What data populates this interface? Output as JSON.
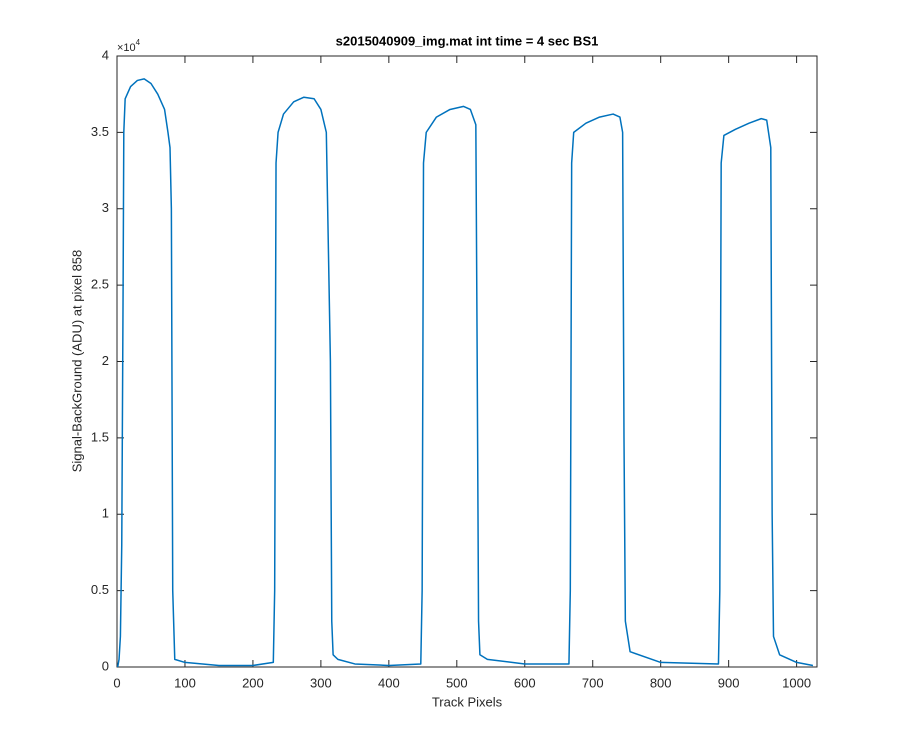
{
  "chart_data": {
    "type": "line",
    "title": "s2015040909_img.mat int time = 4 sec   BS1",
    "x_label": "Track Pixels",
    "y_label": "Signal-BackGround (ADU) at pixel 858",
    "y_multiplier_base": "×10",
    "y_multiplier_exponent": 4,
    "xlim": [
      0,
      1030
    ],
    "ylim": [
      0,
      4
    ],
    "xticks": [
      0,
      100,
      200,
      300,
      400,
      500,
      600,
      700,
      800,
      900,
      1000
    ],
    "yticks": [
      0,
      0.5,
      1,
      1.5,
      2,
      2.5,
      3,
      3.5,
      4
    ],
    "grid": false,
    "x": [
      1,
      3,
      5,
      7,
      9,
      10,
      12,
      20,
      30,
      40,
      50,
      60,
      70,
      75,
      78,
      80,
      82,
      85,
      100,
      150,
      200,
      230,
      232,
      234,
      237,
      245,
      260,
      275,
      290,
      300,
      308,
      314,
      316,
      318,
      325,
      350,
      400,
      447,
      449,
      451,
      455,
      470,
      490,
      510,
      520,
      528,
      530,
      532,
      534,
      545,
      600,
      665,
      667,
      669,
      672,
      690,
      710,
      730,
      740,
      744,
      746,
      748,
      755,
      800,
      885,
      887,
      889,
      893,
      910,
      930,
      948,
      956,
      962,
      964,
      966,
      975,
      1000,
      1024
    ],
    "series": [
      {
        "name": "BS1",
        "color": "#0072bd",
        "values": [
          0.0,
          0.05,
          0.2,
          0.8,
          2.5,
          3.5,
          3.72,
          3.8,
          3.84,
          3.85,
          3.82,
          3.75,
          3.65,
          3.5,
          3.4,
          3.0,
          0.5,
          0.05,
          0.03,
          0.01,
          0.01,
          0.03,
          0.5,
          3.3,
          3.5,
          3.62,
          3.7,
          3.73,
          3.72,
          3.65,
          3.5,
          2.0,
          0.3,
          0.08,
          0.05,
          0.02,
          0.01,
          0.02,
          0.5,
          3.3,
          3.5,
          3.6,
          3.65,
          3.67,
          3.65,
          3.55,
          2.0,
          0.3,
          0.08,
          0.05,
          0.02,
          0.02,
          0.5,
          3.3,
          3.5,
          3.56,
          3.6,
          3.62,
          3.6,
          3.5,
          1.5,
          0.3,
          0.1,
          0.03,
          0.02,
          0.5,
          3.3,
          3.48,
          3.52,
          3.56,
          3.59,
          3.58,
          3.4,
          1.0,
          0.2,
          0.08,
          0.03,
          0.01
        ]
      }
    ]
  }
}
